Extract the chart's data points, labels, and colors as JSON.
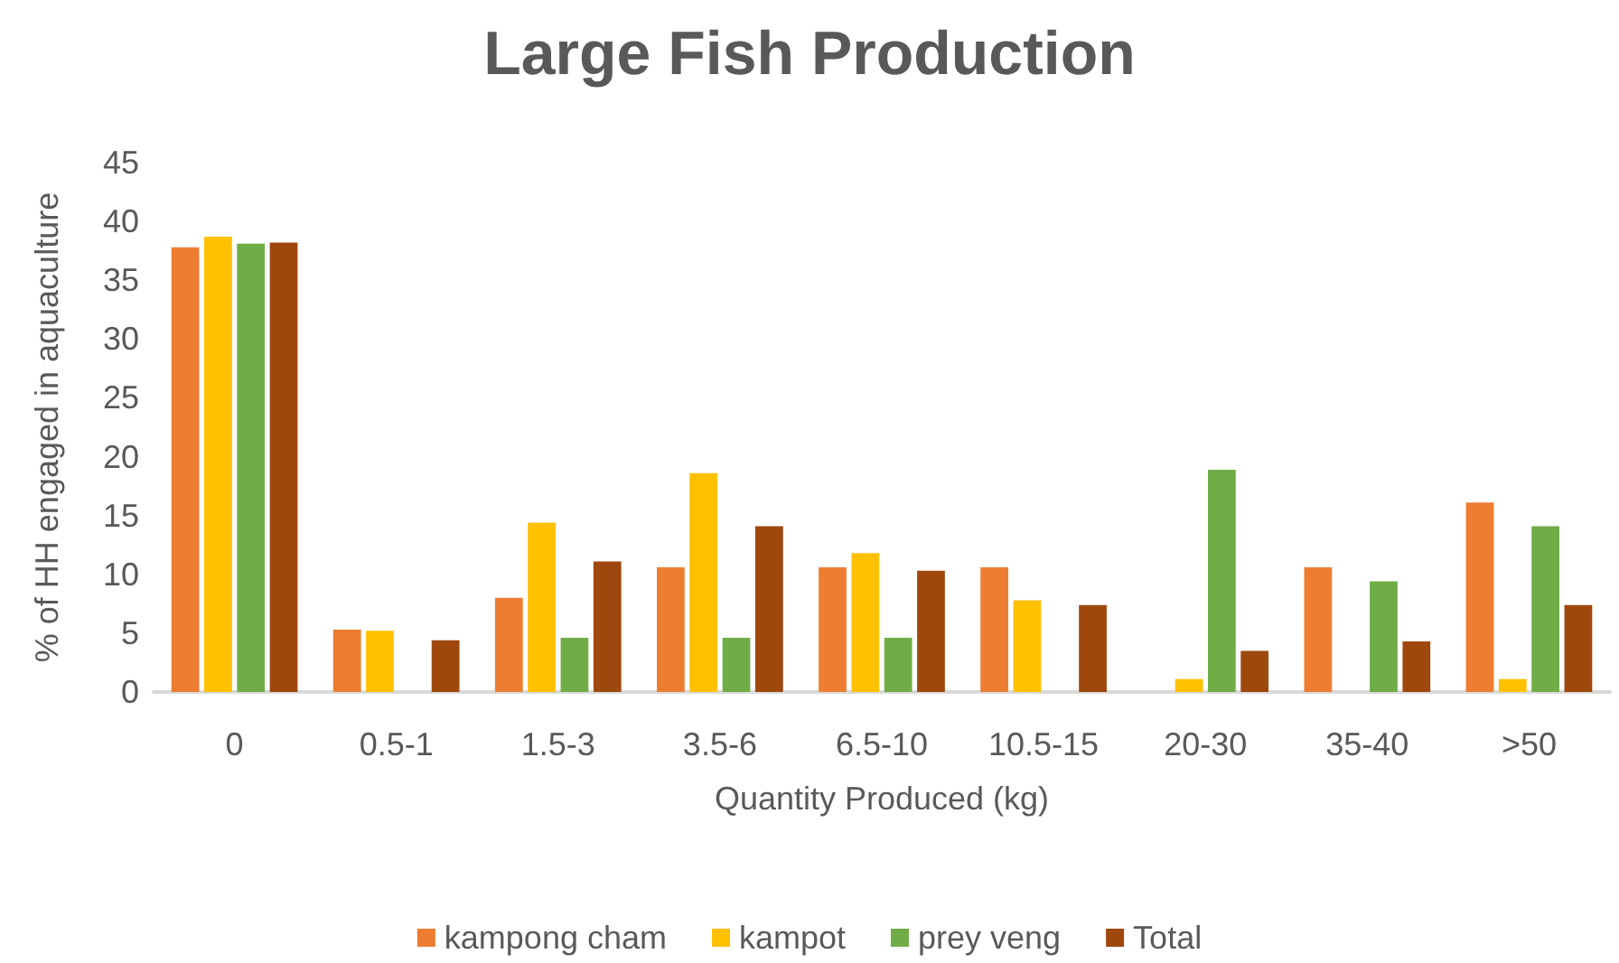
{
  "chart_data": {
    "type": "bar",
    "title": "Large Fish Production",
    "xlabel": "Quantity Produced (kg)",
    "ylabel": "% of HH engaged in aquaculture",
    "categories": [
      "0",
      "0.5-1",
      "1.5-3",
      "3.5-6",
      "6.5-10",
      "10.5-15",
      "20-30",
      "35-40",
      ">50"
    ],
    "series": [
      {
        "name": "kampong cham",
        "color": "#ed7d31",
        "values": [
          37.8,
          5.3,
          8.0,
          10.6,
          10.6,
          10.6,
          0,
          10.6,
          16.1
        ]
      },
      {
        "name": "kampot",
        "color": "#ffc000",
        "values": [
          38.7,
          5.2,
          14.4,
          18.6,
          11.8,
          7.8,
          1.1,
          0,
          1.1
        ]
      },
      {
        "name": "prey veng",
        "color": "#70ad47",
        "values": [
          38.1,
          0,
          4.6,
          4.6,
          4.6,
          0,
          18.9,
          9.4,
          14.1
        ]
      },
      {
        "name": "Total",
        "color": "#9e480e",
        "values": [
          38.2,
          4.4,
          11.1,
          14.1,
          10.3,
          7.4,
          3.5,
          4.3,
          7.4
        ]
      }
    ],
    "ylim": [
      0,
      45
    ],
    "yticks": [
      0,
      5,
      10,
      15,
      20,
      25,
      30,
      35,
      40,
      45
    ],
    "grid": false,
    "legend": "bottom"
  }
}
